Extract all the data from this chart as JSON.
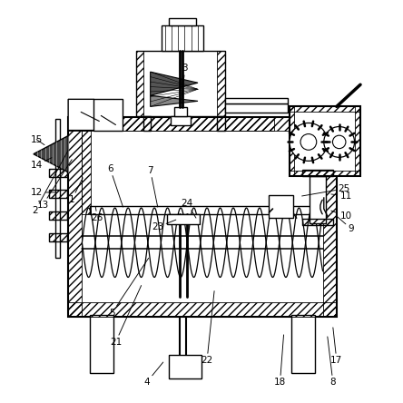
{
  "bg_color": "#ffffff",
  "line_color": "#000000",
  "lw_main": 1.0,
  "lw_thick": 1.5,
  "lw_thin": 0.6,
  "label_fontsize": 7.5,
  "labels": {
    "1": [
      0.145,
      0.555,
      0.175,
      0.615
    ],
    "2": [
      0.045,
      0.525,
      0.135,
      0.69
    ],
    "3": [
      0.455,
      0.915,
      0.445,
      0.83
    ],
    "4": [
      0.35,
      0.055,
      0.395,
      0.11
    ],
    "5": [
      0.255,
      0.245,
      0.355,
      0.395
    ],
    "6": [
      0.25,
      0.64,
      0.285,
      0.535
    ],
    "7": [
      0.36,
      0.635,
      0.38,
      0.535
    ],
    "8": [
      0.86,
      0.055,
      0.845,
      0.18
    ],
    "9": [
      0.91,
      0.475,
      0.87,
      0.51
    ],
    "10": [
      0.895,
      0.51,
      0.855,
      0.525
    ],
    "11": [
      0.895,
      0.565,
      0.855,
      0.57
    ],
    "12": [
      0.05,
      0.575,
      0.1,
      0.575
    ],
    "13": [
      0.065,
      0.54,
      0.145,
      0.665
    ],
    "14": [
      0.048,
      0.65,
      0.09,
      0.67
    ],
    "15": [
      0.048,
      0.72,
      0.07,
      0.705
    ],
    "17": [
      0.87,
      0.115,
      0.86,
      0.205
    ],
    "18": [
      0.715,
      0.055,
      0.725,
      0.185
    ],
    "21": [
      0.265,
      0.165,
      0.335,
      0.32
    ],
    "22": [
      0.515,
      0.115,
      0.535,
      0.305
    ],
    "23": [
      0.38,
      0.48,
      0.43,
      0.5
    ],
    "24": [
      0.46,
      0.545,
      0.485,
      0.505
    ],
    "25": [
      0.89,
      0.585,
      0.775,
      0.565
    ],
    "26": [
      0.215,
      0.505,
      0.21,
      0.535
    ]
  }
}
